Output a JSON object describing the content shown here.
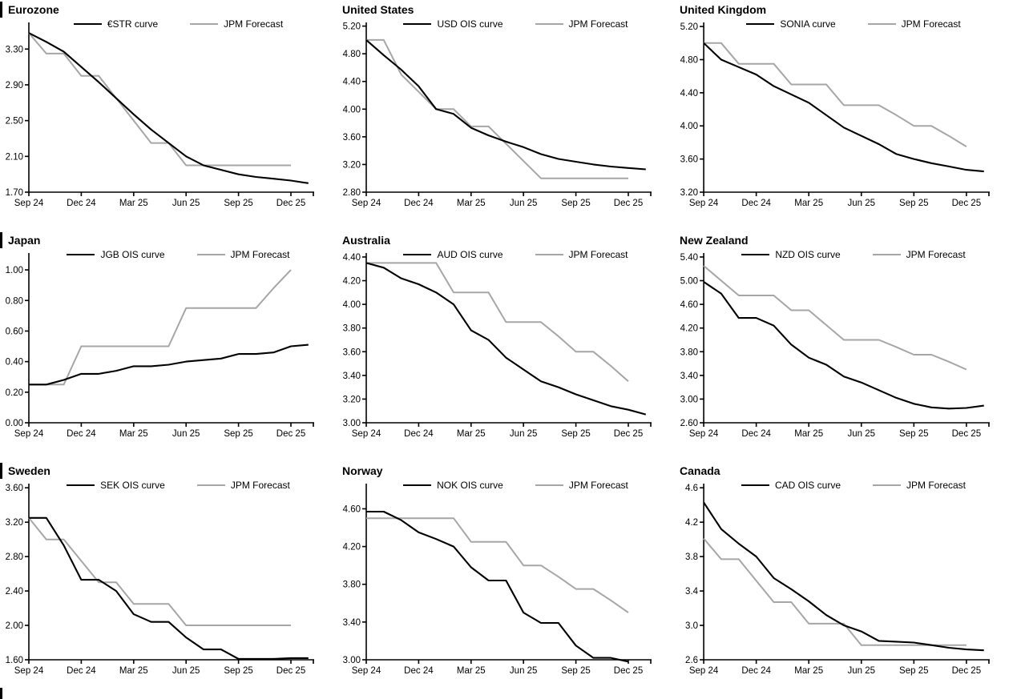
{
  "colors": {
    "ois_line": "#000000",
    "forecast_line": "#a6a6a6",
    "axis": "#000000",
    "background": "#ffffff"
  },
  "chart_data": {
    "type": "line",
    "legend_position": "top",
    "grid": "off",
    "x_axis": {
      "tick_labels": [
        "Sep 24",
        "Dec 24",
        "Mar 25",
        "Jun 25",
        "Sep 25",
        "Dec 25"
      ],
      "tick_months": [
        0,
        3,
        6,
        9,
        12,
        15
      ],
      "months_span": 16.3
    },
    "charts": [
      {
        "title": "Eurozone",
        "y_ticks": [
          "1.70",
          "2.10",
          "2.50",
          "2.90",
          "3.30"
        ],
        "y_min": 1.7,
        "y_max": 3.58,
        "series": [
          {
            "name": "€STR curve",
            "values": [
              3.48,
              3.38,
              3.27,
              3.1,
              2.93,
              2.75,
              2.57,
              2.4,
              2.25,
              2.1,
              2.0,
              1.95,
              1.9,
              1.87,
              1.85,
              1.83,
              1.8
            ]
          },
          {
            "name": "JPM Forecast",
            "values": [
              3.48,
              3.25,
              3.25,
              3.0,
              3.0,
              2.75,
              2.5,
              2.25,
              2.25,
              2.0,
              2.0,
              2.0,
              2.0,
              2.0,
              2.0,
              2.0
            ]
          }
        ]
      },
      {
        "title": "United States",
        "y_ticks": [
          "2.80",
          "3.20",
          "3.60",
          "4.00",
          "4.40",
          "4.80",
          "5.20"
        ],
        "y_min": 2.8,
        "y_max": 5.23,
        "series": [
          {
            "name": "USD OIS curve",
            "values": [
              5.0,
              4.78,
              4.57,
              4.33,
              4.0,
              3.93,
              3.73,
              3.62,
              3.53,
              3.45,
              3.35,
              3.28,
              3.24,
              3.2,
              3.17,
              3.15,
              3.13
            ]
          },
          {
            "name": "JPM Forecast",
            "values": [
              5.0,
              5.0,
              4.5,
              4.25,
              4.0,
              4.0,
              3.75,
              3.75,
              3.5,
              3.25,
              3.0,
              3.0,
              3.0,
              3.0,
              3.0,
              3.0
            ]
          }
        ]
      },
      {
        "title": "United Kingdom",
        "y_ticks": [
          "3.20",
          "3.60",
          "4.00",
          "4.40",
          "4.80",
          "5.20"
        ],
        "y_min": 3.2,
        "y_max": 5.23,
        "series": [
          {
            "name": "SONIA curve",
            "values": [
              5.0,
              4.8,
              4.71,
              4.62,
              4.48,
              4.38,
              4.28,
              4.13,
              3.98,
              3.88,
              3.78,
              3.66,
              3.6,
              3.55,
              3.51,
              3.47,
              3.45
            ]
          },
          {
            "name": "JPM Forecast",
            "values": [
              5.0,
              5.0,
              4.75,
              4.75,
              4.75,
              4.5,
              4.5,
              4.5,
              4.25,
              4.25,
              4.25,
              4.13,
              4.0,
              4.0,
              3.88,
              3.75
            ]
          }
        ]
      },
      {
        "title": "Japan",
        "y_ticks": [
          "0.00",
          "0.20",
          "0.40",
          "0.60",
          "0.80",
          "1.00"
        ],
        "y_min": 0.0,
        "y_max": 1.1,
        "series": [
          {
            "name": "JGB OIS curve",
            "values": [
              0.25,
              0.25,
              0.28,
              0.32,
              0.32,
              0.34,
              0.37,
              0.37,
              0.38,
              0.4,
              0.41,
              0.42,
              0.45,
              0.45,
              0.46,
              0.5,
              0.51
            ]
          },
          {
            "name": "JPM Forecast",
            "values": [
              0.25,
              0.25,
              0.25,
              0.5,
              0.5,
              0.5,
              0.5,
              0.5,
              0.5,
              0.75,
              0.75,
              0.75,
              0.75,
              0.75,
              0.88,
              1.0
            ]
          }
        ]
      },
      {
        "title": "Australia",
        "y_ticks": [
          "3.00",
          "3.20",
          "3.40",
          "3.60",
          "3.80",
          "4.00",
          "4.20",
          "4.40"
        ],
        "y_min": 3.0,
        "y_max": 4.42,
        "series": [
          {
            "name": "AUD OIS curve",
            "values": [
              4.35,
              4.31,
              4.22,
              4.17,
              4.1,
              4.0,
              3.78,
              3.7,
              3.55,
              3.45,
              3.35,
              3.3,
              3.24,
              3.19,
              3.14,
              3.11,
              3.07
            ]
          },
          {
            "name": "JPM Forecast",
            "values": [
              4.35,
              4.35,
              4.35,
              4.35,
              4.35,
              4.1,
              4.1,
              4.1,
              3.85,
              3.85,
              3.85,
              3.73,
              3.6,
              3.6,
              3.48,
              3.35
            ]
          }
        ]
      },
      {
        "title": "New Zealand",
        "y_ticks": [
          "2.60",
          "3.00",
          "3.40",
          "3.80",
          "4.20",
          "4.60",
          "5.00",
          "5.40"
        ],
        "y_min": 2.6,
        "y_max": 5.44,
        "series": [
          {
            "name": "NZD OIS curve",
            "values": [
              4.98,
              4.78,
              4.37,
              4.37,
              4.24,
              3.92,
              3.7,
              3.58,
              3.38,
              3.28,
              3.15,
              3.02,
              2.92,
              2.86,
              2.84,
              2.85,
              2.89
            ]
          },
          {
            "name": "JPM Forecast",
            "values": [
              5.25,
              5.0,
              4.75,
              4.75,
              4.75,
              4.5,
              4.5,
              4.25,
              4.0,
              4.0,
              4.0,
              3.88,
              3.75,
              3.75,
              3.63,
              3.5
            ]
          }
        ]
      },
      {
        "title": "Sweden",
        "y_ticks": [
          "1.60",
          "2.00",
          "2.40",
          "2.80",
          "3.20",
          "3.60"
        ],
        "y_min": 1.6,
        "y_max": 3.63,
        "series": [
          {
            "name": "SEK OIS curve",
            "values": [
              3.25,
              3.25,
              2.93,
              2.53,
              2.53,
              2.4,
              2.13,
              2.04,
              2.04,
              1.86,
              1.72,
              1.72,
              1.61,
              1.61,
              1.61,
              1.62,
              1.62
            ]
          },
          {
            "name": "JPM Forecast",
            "values": [
              3.25,
              3.0,
              3.0,
              2.75,
              2.5,
              2.5,
              2.25,
              2.25,
              2.25,
              2.0,
              2.0,
              2.0,
              2.0,
              2.0,
              2.0,
              2.0
            ]
          }
        ]
      },
      {
        "title": "Norway",
        "y_ticks": [
          "3.00",
          "3.40",
          "3.80",
          "4.20",
          "4.60"
        ],
        "y_min": 3.0,
        "y_max": 4.85,
        "series": [
          {
            "name": "NOK OIS curve",
            "values": [
              4.57,
              4.57,
              4.48,
              4.35,
              4.28,
              4.2,
              3.98,
              3.84,
              3.84,
              3.5,
              3.39,
              3.39,
              3.15,
              3.02,
              3.02,
              2.98
            ]
          },
          {
            "name": "JPM Forecast",
            "values": [
              4.5,
              4.5,
              4.5,
              4.5,
              4.5,
              4.5,
              4.25,
              4.25,
              4.25,
              4.0,
              4.0,
              3.88,
              3.75,
              3.75,
              3.63,
              3.5
            ]
          }
        ]
      },
      {
        "title": "Canada",
        "y_ticks": [
          "2.6",
          "3.0",
          "3.4",
          "3.8",
          "4.2",
          "4.6"
        ],
        "y_min": 2.6,
        "y_max": 4.63,
        "series": [
          {
            "name": "CAD OIS curve",
            "values": [
              4.43,
              4.12,
              3.95,
              3.8,
              3.55,
              3.42,
              3.28,
              3.12,
              3.0,
              2.93,
              2.82,
              2.81,
              2.8,
              2.77,
              2.74,
              2.72,
              2.71
            ]
          },
          {
            "name": "JPM Forecast",
            "values": [
              4.01,
              3.77,
              3.77,
              3.52,
              3.27,
              3.27,
              3.02,
              3.02,
              3.02,
              2.77,
              2.77,
              2.77,
              2.77,
              2.77,
              2.77,
              2.77
            ]
          }
        ]
      }
    ]
  }
}
